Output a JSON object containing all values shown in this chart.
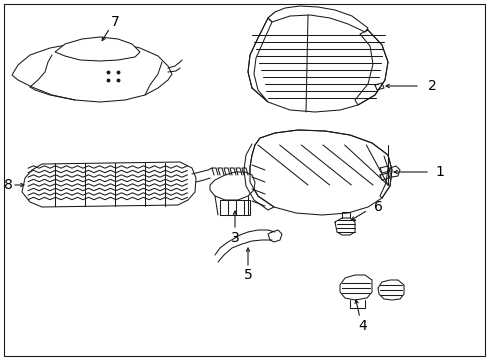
{
  "background_color": "#ffffff",
  "line_color": "#1a1a1a",
  "label_color": "#000000",
  "figsize": [
    4.89,
    3.6
  ],
  "dpi": 100,
  "font_size": 10,
  "lw": 0.75
}
